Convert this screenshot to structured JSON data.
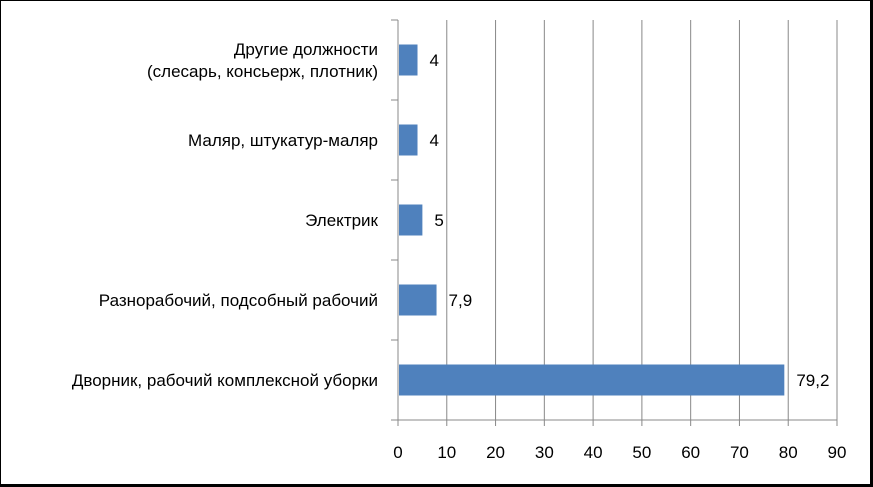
{
  "chart_data": {
    "type": "bar",
    "orientation": "horizontal",
    "categories": [
      [
        "Другие должности",
        "(слесарь, консьерж, плотник)"
      ],
      [
        "Маляр, штукатур-маляр"
      ],
      [
        "Электрик"
      ],
      [
        "Разнорабочий, подсобный рабочий"
      ],
      [
        "Дворник, рабочий комплексной уборки"
      ]
    ],
    "values": [
      4,
      4,
      5,
      7.9,
      79.2
    ],
    "value_labels": [
      "4",
      "4",
      "5",
      "7,9",
      "79,2"
    ],
    "xlim": [
      0,
      90
    ],
    "xticks": [
      "0",
      "10",
      "20",
      "30",
      "40",
      "50",
      "60",
      "70",
      "80",
      "90"
    ],
    "grid": "vertical",
    "legend": "none",
    "bar_color": "#4F81BD",
    "gridline_color": "#888888"
  }
}
